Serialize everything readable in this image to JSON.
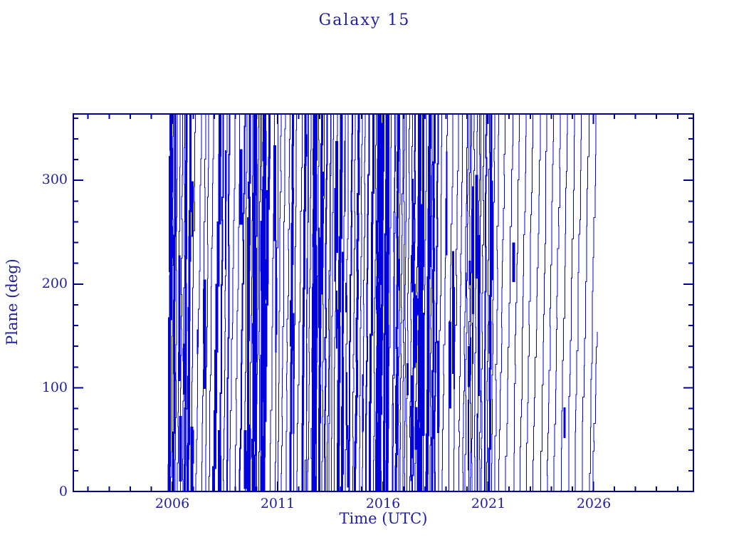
{
  "chart_data": {
    "type": "line",
    "title": "Galaxy 15",
    "xlabel": "Time (UTC)",
    "ylabel": "Plane (deg)",
    "xlim": [
      2001.3,
      2030.75
    ],
    "ylim": [
      0,
      364
    ],
    "x_major_ticks": [
      2006,
      2011,
      2016,
      2021,
      2026
    ],
    "x_tick_labels": [
      "2006",
      "2011",
      "2016",
      "2021",
      "2026"
    ],
    "x_minor_step": 1,
    "y_major_ticks": [
      0,
      100,
      200,
      300
    ],
    "y_tick_labels": [
      "0",
      "100",
      "200",
      "300"
    ],
    "y_minor_step": 20,
    "grid": false,
    "legend": false,
    "axis_color": "#000099",
    "line_color": "#0202dd",
    "text_color": "#1f1f9c",
    "background_color": "#ffffff",
    "data_start": 2005.85,
    "data_end": 2026.18,
    "last_point": {
      "time": 2026.18,
      "angle": 154
    },
    "series_description": "Orbital plane angle of Galaxy 15 wrapping repeatedly through 0-360 deg between late 2005 and early 2026, drawn as ~130 near-vertical staircase traces; dense thick clusters near 2006, 2010, 2012.8, 2014-2018 and 2020-2021.4; sparse regular traces (period ~0.34 yr) from 2021.5 to 2026; final partial wrap ends at 154 deg in 2026.2",
    "seed": 1337,
    "pattern_epochs": [
      {
        "from": 2005.85,
        "to": 2006.75,
        "period": 0.13,
        "jitter": 0.5,
        "thick_frac": 0.35,
        "blotch_per_year": 6
      },
      {
        "from": 2006.75,
        "to": 2009.45,
        "period": 0.21,
        "jitter": 0.55,
        "thick_frac": 0.18,
        "blotch_per_year": 3.5
      },
      {
        "from": 2009.45,
        "to": 2010.35,
        "period": 0.1,
        "jitter": 0.5,
        "thick_frac": 0.45,
        "blotch_per_year": 9
      },
      {
        "from": 2010.35,
        "to": 2012.35,
        "period": 0.21,
        "jitter": 0.5,
        "thick_frac": 0.15,
        "blotch_per_year": 3
      },
      {
        "from": 2012.35,
        "to": 2013.45,
        "period": 0.12,
        "jitter": 0.5,
        "thick_frac": 0.38,
        "blotch_per_year": 7
      },
      {
        "from": 2013.45,
        "to": 2016.45,
        "period": 0.15,
        "jitter": 0.5,
        "thick_frac": 0.25,
        "blotch_per_year": 6
      },
      {
        "from": 2016.45,
        "to": 2018.45,
        "period": 0.11,
        "jitter": 0.5,
        "thick_frac": 0.4,
        "blotch_per_year": 9
      },
      {
        "from": 2018.45,
        "to": 2019.9,
        "period": 0.19,
        "jitter": 0.45,
        "thick_frac": 0.2,
        "blotch_per_year": 4
      },
      {
        "from": 2019.9,
        "to": 2021.5,
        "period": 0.13,
        "jitter": 0.5,
        "thick_frac": 0.45,
        "blotch_per_year": 8
      },
      {
        "from": 2021.5,
        "to": 2025.95,
        "period": 0.34,
        "jitter": 0.08,
        "thick_frac": 0.04,
        "blotch_per_year": 0.4
      }
    ]
  }
}
